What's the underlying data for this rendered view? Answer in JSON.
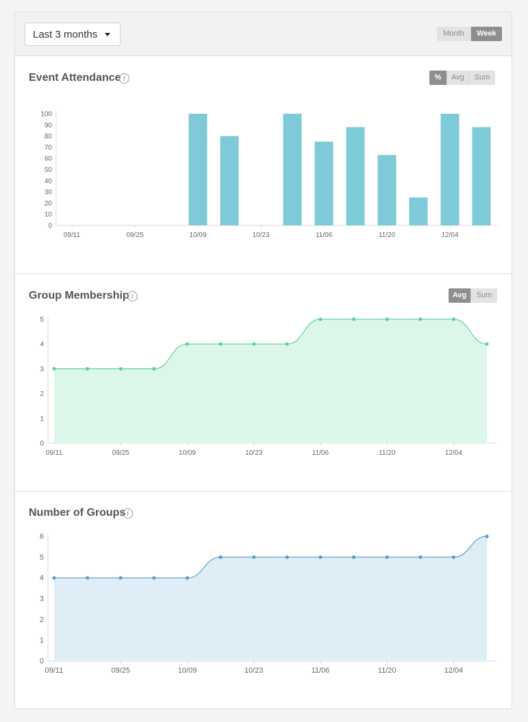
{
  "toolbar": {
    "range_label": "Last 3 months",
    "granularity": [
      "Month",
      "Week"
    ],
    "granularity_active": "Week"
  },
  "colors": {
    "attendance_bar": "#7ecad9",
    "membership_line": "#5fd29a",
    "membership_fill": "#dcf6ea",
    "groups_line": "#5b9ec9",
    "groups_fill": "#deedf6",
    "active_toggle": "#8e8e8e"
  },
  "sections": {
    "attendance": {
      "title": "Event Attendance",
      "info_icon": "info-icon",
      "toggles": [
        "%",
        "Avg",
        "Sum"
      ],
      "active": "%"
    },
    "membership": {
      "title": "Group Membership",
      "info_icon": "info-icon",
      "toggles": [
        "Avg",
        "Sum"
      ],
      "active": "Avg"
    },
    "groups": {
      "title": "Number of Groups",
      "info_icon": "info-icon"
    }
  },
  "chart_data": [
    {
      "type": "bar",
      "title": "Event Attendance",
      "x_ticks": [
        "09/11",
        "09/25",
        "10/09",
        "10/23",
        "11/06",
        "11/20",
        "12/04"
      ],
      "categories": [
        "09/11",
        "09/18",
        "09/25",
        "10/02",
        "10/09",
        "10/16",
        "10/23",
        "10/30",
        "11/06",
        "11/13",
        "11/20",
        "11/27",
        "12/04",
        "12/11"
      ],
      "values": [
        null,
        null,
        null,
        null,
        100,
        80,
        null,
        100,
        75,
        88,
        63,
        25,
        100,
        88
      ],
      "y_ticks": [
        0,
        10,
        20,
        30,
        40,
        50,
        60,
        70,
        80,
        90,
        100
      ],
      "ylim": [
        0,
        100
      ],
      "grid": false
    },
    {
      "type": "area",
      "title": "Group Membership",
      "x_ticks": [
        "09/11",
        "09/25",
        "10/09",
        "10/23",
        "11/06",
        "11/20",
        "12/04"
      ],
      "categories": [
        "09/11",
        "09/18",
        "09/25",
        "10/02",
        "10/09",
        "10/16",
        "10/23",
        "10/30",
        "11/06",
        "11/13",
        "11/20",
        "11/27",
        "12/04",
        "12/11"
      ],
      "values": [
        3,
        3,
        3,
        3,
        4,
        4,
        4,
        4,
        5,
        5,
        5,
        5,
        5,
        4
      ],
      "y_ticks": [
        0,
        1,
        2,
        3,
        4,
        5
      ],
      "ylim": [
        0,
        5
      ],
      "grid": false
    },
    {
      "type": "area",
      "title": "Number of Groups",
      "x_ticks": [
        "09/11",
        "09/25",
        "10/09",
        "10/23",
        "11/06",
        "11/20",
        "12/04"
      ],
      "categories": [
        "09/11",
        "09/18",
        "09/25",
        "10/02",
        "10/09",
        "10/16",
        "10/23",
        "10/30",
        "11/06",
        "11/13",
        "11/20",
        "11/27",
        "12/04",
        "12/11"
      ],
      "values": [
        4,
        4,
        4,
        4,
        4,
        5,
        5,
        5,
        5,
        5,
        5,
        5,
        5,
        6
      ],
      "y_ticks": [
        0,
        1,
        2,
        3,
        4,
        5,
        6
      ],
      "ylim": [
        0,
        6
      ],
      "grid": false
    }
  ]
}
